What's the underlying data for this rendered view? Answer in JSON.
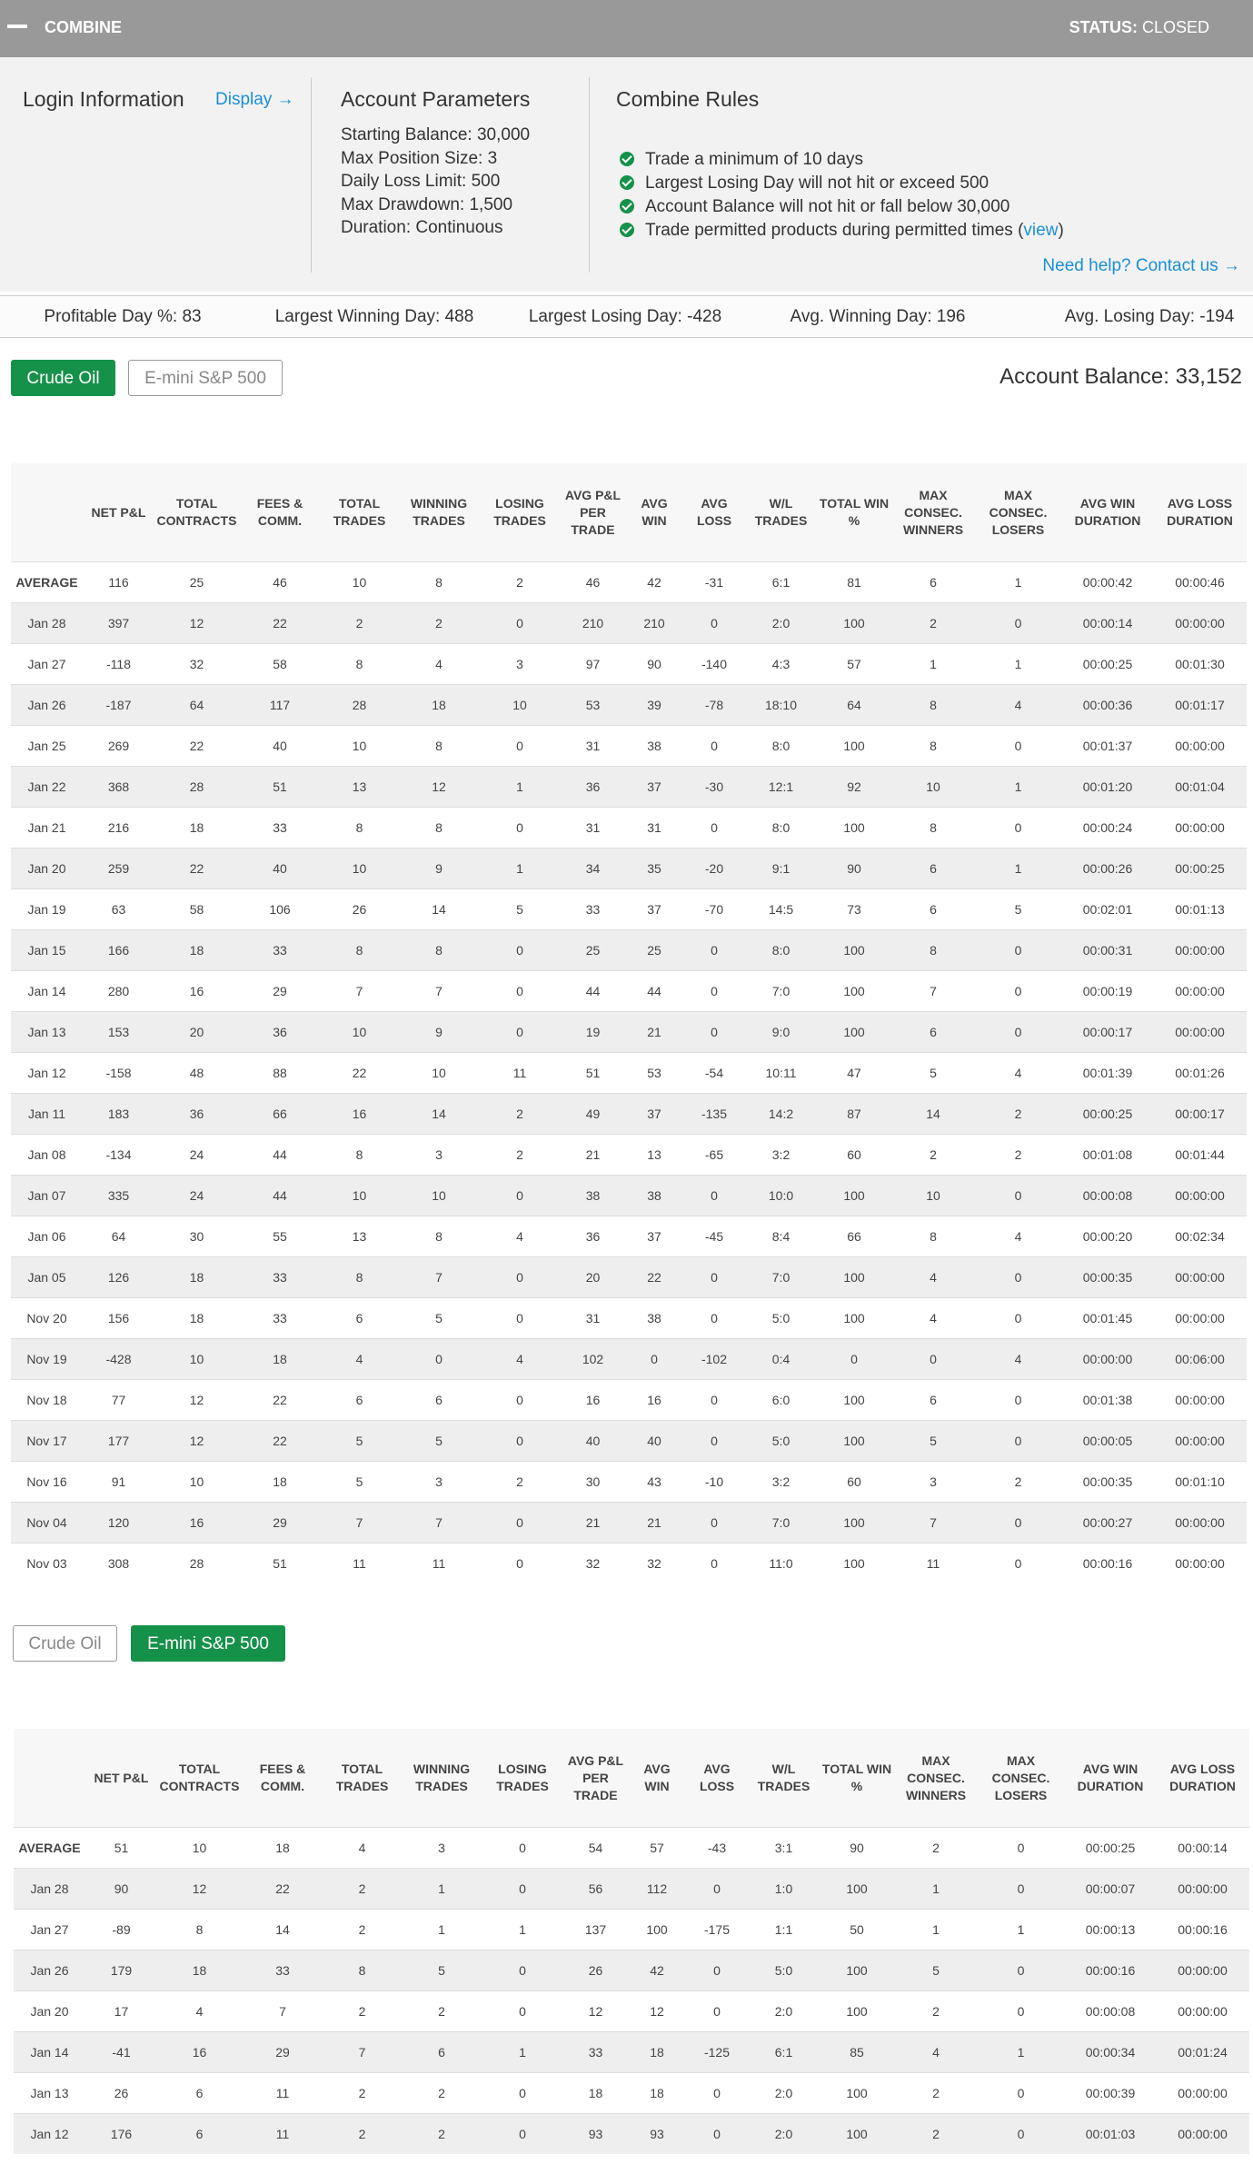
{
  "header": {
    "title": "COMBINE",
    "status_label": "STATUS:",
    "status_value": "CLOSED"
  },
  "login": {
    "title": "Login Information",
    "link": "Display →"
  },
  "params": {
    "title": "Account Parameters",
    "items": [
      "Starting Balance: 30,000",
      "Max Position Size: 3",
      "Daily Loss Limit: 500",
      "Max Drawdown: 1,500",
      "Duration: Continuous"
    ]
  },
  "rules": {
    "title": "Combine Rules",
    "items": [
      "Trade a minimum of 10 days",
      "Largest Losing Day will not hit or exceed 500",
      "Account Balance will not hit or fall below 30,000"
    ],
    "view_item": {
      "before": "Trade permitted products during permitted times (",
      "link": "view",
      "after": ")"
    },
    "help": "Need help? Contact us →"
  },
  "stats": [
    "Profitable Day %: 83",
    "Largest Winning Day: 488",
    "Largest Losing Day: -428",
    "Avg. Winning Day: 196",
    "Avg. Losing Day: -194"
  ],
  "account_balance": "Account Balance: 33,152",
  "columns": [
    "",
    "NET P&L",
    "TOTAL CONTRACTS",
    "FEES & COMM.",
    "TOTAL TRADES",
    "WINNING TRADES",
    "LOSING TRADES",
    "AVG P&L PER TRADE",
    "AVG WIN",
    "AVG LOSS",
    "W/L TRADES",
    "TOTAL WIN %",
    "MAX CONSEC. WINNERS",
    "MAX CONSEC. LOSERS",
    "AVG WIN DURATION",
    "AVG LOSS DURATION"
  ],
  "tables": [
    {
      "tabs": [
        "Crude Oil",
        "E-mini S&P 500"
      ],
      "active": 0,
      "rows": [
        [
          "AVERAGE",
          116,
          25,
          46,
          10,
          8,
          2,
          46,
          42,
          -31,
          "6:1",
          81,
          6,
          1,
          "00:00:42",
          "00:00:46"
        ],
        [
          "Jan 28",
          397,
          12,
          22,
          2,
          2,
          0,
          210,
          210,
          0,
          "2:0",
          100,
          2,
          0,
          "00:00:14",
          "00:00:00"
        ],
        [
          "Jan 27",
          -118,
          32,
          58,
          8,
          4,
          3,
          97,
          90,
          -140,
          "4:3",
          57,
          1,
          1,
          "00:00:25",
          "00:01:30"
        ],
        [
          "Jan 26",
          -187,
          64,
          117,
          28,
          18,
          10,
          53,
          39,
          -78,
          "18:10",
          64,
          8,
          4,
          "00:00:36",
          "00:01:17"
        ],
        [
          "Jan 25",
          269,
          22,
          40,
          10,
          8,
          0,
          31,
          38,
          0,
          "8:0",
          100,
          8,
          0,
          "00:01:37",
          "00:00:00"
        ],
        [
          "Jan 22",
          368,
          28,
          51,
          13,
          12,
          1,
          36,
          37,
          -30,
          "12:1",
          92,
          10,
          1,
          "00:01:20",
          "00:01:04"
        ],
        [
          "Jan 21",
          216,
          18,
          33,
          8,
          8,
          0,
          31,
          31,
          0,
          "8:0",
          100,
          8,
          0,
          "00:00:24",
          "00:00:00"
        ],
        [
          "Jan 20",
          259,
          22,
          40,
          10,
          9,
          1,
          34,
          35,
          -20,
          "9:1",
          90,
          6,
          1,
          "00:00:26",
          "00:00:25"
        ],
        [
          "Jan 19",
          63,
          58,
          106,
          26,
          14,
          5,
          33,
          37,
          -70,
          "14:5",
          73,
          6,
          5,
          "00:02:01",
          "00:01:13"
        ],
        [
          "Jan 15",
          166,
          18,
          33,
          8,
          8,
          0,
          25,
          25,
          0,
          "8:0",
          100,
          8,
          0,
          "00:00:31",
          "00:00:00"
        ],
        [
          "Jan 14",
          280,
          16,
          29,
          7,
          7,
          0,
          44,
          44,
          0,
          "7:0",
          100,
          7,
          0,
          "00:00:19",
          "00:00:00"
        ],
        [
          "Jan 13",
          153,
          20,
          36,
          10,
          9,
          0,
          19,
          21,
          0,
          "9:0",
          100,
          6,
          0,
          "00:00:17",
          "00:00:00"
        ],
        [
          "Jan 12",
          -158,
          48,
          88,
          22,
          10,
          11,
          51,
          53,
          -54,
          "10:11",
          47,
          5,
          4,
          "00:01:39",
          "00:01:26"
        ],
        [
          "Jan 11",
          183,
          36,
          66,
          16,
          14,
          2,
          49,
          37,
          -135,
          "14:2",
          87,
          14,
          2,
          "00:00:25",
          "00:00:17"
        ],
        [
          "Jan 08",
          -134,
          24,
          44,
          8,
          3,
          2,
          21,
          13,
          -65,
          "3:2",
          60,
          2,
          2,
          "00:01:08",
          "00:01:44"
        ],
        [
          "Jan 07",
          335,
          24,
          44,
          10,
          10,
          0,
          38,
          38,
          0,
          "10:0",
          100,
          10,
          0,
          "00:00:08",
          "00:00:00"
        ],
        [
          "Jan 06",
          64,
          30,
          55,
          13,
          8,
          4,
          36,
          37,
          -45,
          "8:4",
          66,
          8,
          4,
          "00:00:20",
          "00:02:34"
        ],
        [
          "Jan 05",
          126,
          18,
          33,
          8,
          7,
          0,
          20,
          22,
          0,
          "7:0",
          100,
          4,
          0,
          "00:00:35",
          "00:00:00"
        ],
        [
          "Nov 20",
          156,
          18,
          33,
          6,
          5,
          0,
          31,
          38,
          0,
          "5:0",
          100,
          4,
          0,
          "00:01:45",
          "00:00:00"
        ],
        [
          "Nov 19",
          -428,
          10,
          18,
          4,
          0,
          4,
          102,
          0,
          -102,
          "0:4",
          0,
          0,
          4,
          "00:00:00",
          "00:06:00"
        ],
        [
          "Nov 18",
          77,
          12,
          22,
          6,
          6,
          0,
          16,
          16,
          0,
          "6:0",
          100,
          6,
          0,
          "00:01:38",
          "00:00:00"
        ],
        [
          "Nov 17",
          177,
          12,
          22,
          5,
          5,
          0,
          40,
          40,
          0,
          "5:0",
          100,
          5,
          0,
          "00:00:05",
          "00:00:00"
        ],
        [
          "Nov 16",
          91,
          10,
          18,
          5,
          3,
          2,
          30,
          43,
          -10,
          "3:2",
          60,
          3,
          2,
          "00:00:35",
          "00:01:10"
        ],
        [
          "Nov 04",
          120,
          16,
          29,
          7,
          7,
          0,
          21,
          21,
          0,
          "7:0",
          100,
          7,
          0,
          "00:00:27",
          "00:00:00"
        ],
        [
          "Nov 03",
          308,
          28,
          51,
          11,
          11,
          0,
          32,
          32,
          0,
          "11:0",
          100,
          11,
          0,
          "00:00:16",
          "00:00:00"
        ]
      ]
    },
    {
      "tabs": [
        "Crude Oil",
        "E-mini S&P 500"
      ],
      "active": 1,
      "rows": [
        [
          "AVERAGE",
          51,
          10,
          18,
          4,
          3,
          0,
          54,
          57,
          -43,
          "3:1",
          90,
          2,
          0,
          "00:00:25",
          "00:00:14"
        ],
        [
          "Jan 28",
          90,
          12,
          22,
          2,
          1,
          0,
          56,
          112,
          0,
          "1:0",
          100,
          1,
          0,
          "00:00:07",
          "00:00:00"
        ],
        [
          "Jan 27",
          -89,
          8,
          14,
          2,
          1,
          1,
          137,
          100,
          -175,
          "1:1",
          50,
          1,
          1,
          "00:00:13",
          "00:00:16"
        ],
        [
          "Jan 26",
          179,
          18,
          33,
          8,
          5,
          0,
          26,
          42,
          0,
          "5:0",
          100,
          5,
          0,
          "00:00:16",
          "00:00:00"
        ],
        [
          "Jan 20",
          17,
          4,
          7,
          2,
          2,
          0,
          12,
          12,
          0,
          "2:0",
          100,
          2,
          0,
          "00:00:08",
          "00:00:00"
        ],
        [
          "Jan 14",
          -41,
          16,
          29,
          7,
          6,
          1,
          33,
          18,
          -125,
          "6:1",
          85,
          4,
          1,
          "00:00:34",
          "00:01:24"
        ],
        [
          "Jan 13",
          26,
          6,
          11,
          2,
          2,
          0,
          18,
          18,
          0,
          "2:0",
          100,
          2,
          0,
          "00:00:39",
          "00:00:00"
        ],
        [
          "Jan 12",
          176,
          6,
          11,
          2,
          2,
          0,
          93,
          93,
          0,
          "2:0",
          100,
          2,
          0,
          "00:01:03",
          "00:00:00"
        ]
      ]
    }
  ]
}
